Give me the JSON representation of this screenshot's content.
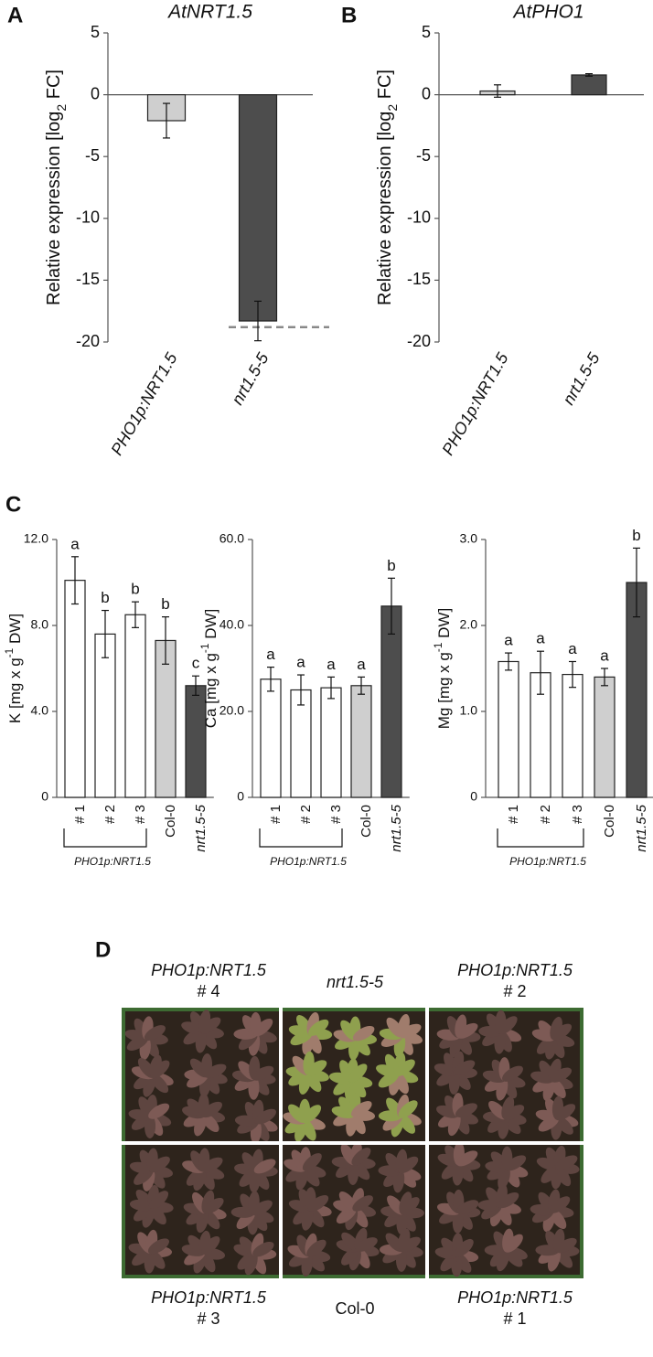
{
  "chart_data": [
    {
      "type": "bar",
      "panel": "A",
      "title": "AtNRT1.5",
      "ylabel": {
        "text": "Relative expression [log",
        "sub": "2",
        "tail": " FC]"
      },
      "categories": [
        "PHO1p:NRT1.5",
        "nrt1.5-5"
      ],
      "italic_labels": [
        true,
        true
      ],
      "values": [
        -2.1,
        -18.3
      ],
      "errors": [
        1.4,
        1.6
      ],
      "colors": [
        "#cfcfcf",
        "#4d4d4d"
      ],
      "reference_line": -18.8,
      "ylim": [
        -20,
        5
      ],
      "yticks": [
        -20,
        -15,
        -10,
        -5,
        0,
        5
      ]
    },
    {
      "type": "bar",
      "panel": "B",
      "title": "AtPHO1",
      "ylabel": {
        "text": "Relative expression [log",
        "sub": "2",
        "tail": " FC]"
      },
      "categories": [
        "PHO1p:NRT1.5",
        "nrt1.5-5"
      ],
      "italic_labels": [
        true,
        true
      ],
      "values": [
        0.3,
        1.6
      ],
      "errors": [
        0.5,
        0.1
      ],
      "colors": [
        "#cfcfcf",
        "#4d4d4d"
      ],
      "ylim": [
        -20,
        5
      ],
      "yticks": [
        -20,
        -15,
        -10,
        -5,
        0,
        5
      ]
    },
    {
      "type": "bar",
      "panel": "C",
      "ylabel": {
        "text": "K [mg x g",
        "sup": "-1",
        "tail": " DW]"
      },
      "categories": [
        "# 1",
        "# 2",
        "# 3",
        "Col-0",
        "nrt1.5-5"
      ],
      "italic_labels": [
        false,
        false,
        false,
        false,
        true
      ],
      "group_label": "PHO1p:NRT1.5",
      "values": [
        10.1,
        7.6,
        8.5,
        7.3,
        5.2
      ],
      "errors": [
        1.1,
        1.1,
        0.6,
        1.1,
        0.45
      ],
      "letters": [
        "a",
        "b",
        "b",
        "b",
        "c"
      ],
      "colors": [
        "#ffffff",
        "#ffffff",
        "#ffffff",
        "#cfcfcf",
        "#4d4d4d"
      ],
      "ylim": [
        0,
        12
      ],
      "yticks": [
        0,
        {
          "value": 4,
          "label": "4.0"
        },
        {
          "value": 8,
          "label": "8.0"
        },
        {
          "value": 12,
          "label": "12.0"
        }
      ]
    },
    {
      "type": "bar",
      "ylabel": {
        "text": "Ca [mg x g",
        "sup": "-1",
        "tail": " DW]"
      },
      "categories": [
        "# 1",
        "# 2",
        "# 3",
        "Col-0",
        "nrt1.5-5"
      ],
      "italic_labels": [
        false,
        false,
        false,
        false,
        true
      ],
      "group_label": "PHO1p:NRT1.5",
      "values": [
        27.5,
        25,
        25.5,
        26,
        44.5
      ],
      "errors": [
        2.8,
        3.5,
        2.5,
        2,
        6.5
      ],
      "letters": [
        "a",
        "a",
        "a",
        "a",
        "b"
      ],
      "colors": [
        "#ffffff",
        "#ffffff",
        "#ffffff",
        "#cfcfcf",
        "#4d4d4d"
      ],
      "ylim": [
        0,
        60
      ],
      "yticks": [
        0,
        {
          "value": 20,
          "label": "20.0"
        },
        {
          "value": 40,
          "label": "40.0"
        },
        {
          "value": 60,
          "label": "60.0"
        }
      ]
    },
    {
      "type": "bar",
      "ylabel": {
        "text": "Mg [mg x g",
        "sup": "-1",
        "tail": " DW]"
      },
      "categories": [
        "# 1",
        "# 2",
        "# 3",
        "Col-0",
        "nrt1.5-5"
      ],
      "italic_labels": [
        false,
        false,
        false,
        false,
        true
      ],
      "group_label": "PHO1p:NRT1.5",
      "values": [
        1.58,
        1.45,
        1.43,
        1.4,
        2.5
      ],
      "errors": [
        0.1,
        0.25,
        0.15,
        0.1,
        0.4
      ],
      "letters": [
        "a",
        "a",
        "a",
        "a",
        "b"
      ],
      "colors": [
        "#ffffff",
        "#ffffff",
        "#ffffff",
        "#cfcfcf",
        "#4d4d4d"
      ],
      "ylim": [
        0,
        3
      ],
      "yticks": [
        0,
        {
          "value": 1,
          "label": "1.0"
        },
        {
          "value": 2,
          "label": "2.0"
        },
        {
          "value": 3,
          "label": "3.0"
        }
      ]
    }
  ],
  "panel_d": {
    "label": "D",
    "captions": [
      {
        "name": "PHO1p:NRT1.5",
        "line": "# 4"
      },
      {
        "name": "nrt1.5-5"
      },
      {
        "name": "PHO1p:NRT1.5",
        "line": "# 2"
      },
      {
        "name": "PHO1p:NRT1.5",
        "line": "# 3"
      },
      {
        "name": "Col-0"
      },
      {
        "name": "PHO1p:NRT1.5",
        "line": "# 1"
      }
    ]
  }
}
